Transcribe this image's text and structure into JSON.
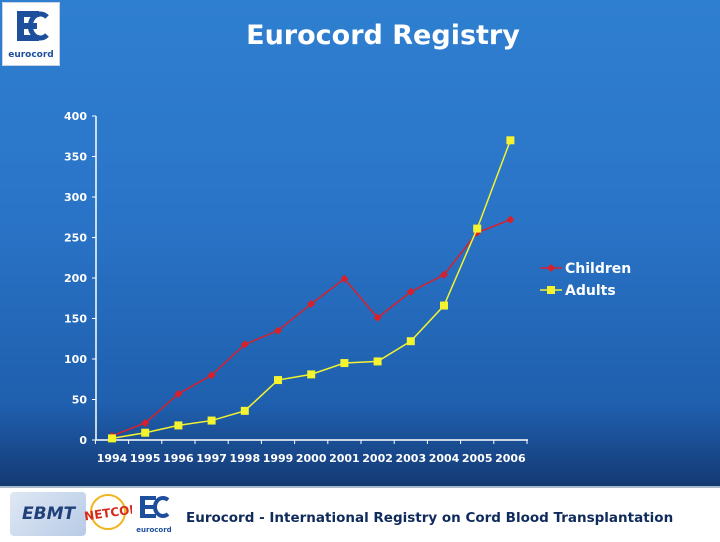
{
  "header": {
    "logo_text": "eurocord",
    "title": "Eurocord Registry"
  },
  "chart_data": {
    "type": "line",
    "title": "Eurocord Registry",
    "xlabel": "",
    "ylabel": "",
    "categories": [
      "1994",
      "1995",
      "1996",
      "1997",
      "1998",
      "1999",
      "2000",
      "2001",
      "2002",
      "2003",
      "2004",
      "2005",
      "2006"
    ],
    "ylim": [
      0,
      400
    ],
    "yticks": [
      0,
      50,
      100,
      150,
      200,
      250,
      300,
      350,
      400
    ],
    "grid": false,
    "legend_position": "right",
    "series": [
      {
        "name": "Children",
        "color": "#d9202a",
        "marker": "diamond",
        "values": [
          5,
          21,
          57,
          80,
          118,
          135,
          168,
          199,
          151,
          183,
          204,
          256,
          272
        ]
      },
      {
        "name": "Adults",
        "color": "#f3f330",
        "marker": "square",
        "values": [
          2,
          9,
          18,
          24,
          36,
          74,
          81,
          95,
          97,
          122,
          166,
          261,
          370
        ]
      }
    ]
  },
  "footer": {
    "ebmt_logo_text": "EBMT",
    "netcord_logo_text": "NETCORD",
    "eurocord_logo_text": "eurocord",
    "caption": "Eurocord - International Registry on Cord Blood Transplantation"
  }
}
